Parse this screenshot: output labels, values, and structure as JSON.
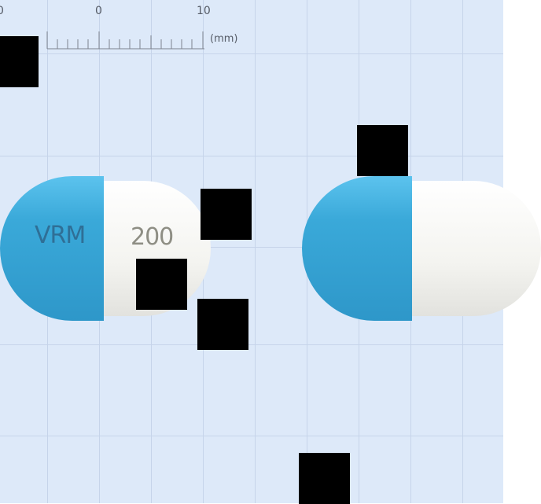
{
  "ruler": {
    "tick_labels": [
      "0",
      "0",
      "10"
    ],
    "unit": "(mm)"
  },
  "capsule_left": {
    "imprint_blue": "VRM",
    "imprint_white": "200"
  },
  "capsule_right": {
    "imprint_blue": "",
    "imprint_white": ""
  },
  "colors": {
    "background": "#dde9f9",
    "grid": "#c6d4ea",
    "capsule_blue": "#3aa9d9",
    "capsule_white": "#f7f7f4",
    "imprint_blue_text": "#2f6f96",
    "imprint_white_text": "#8e8e84"
  }
}
